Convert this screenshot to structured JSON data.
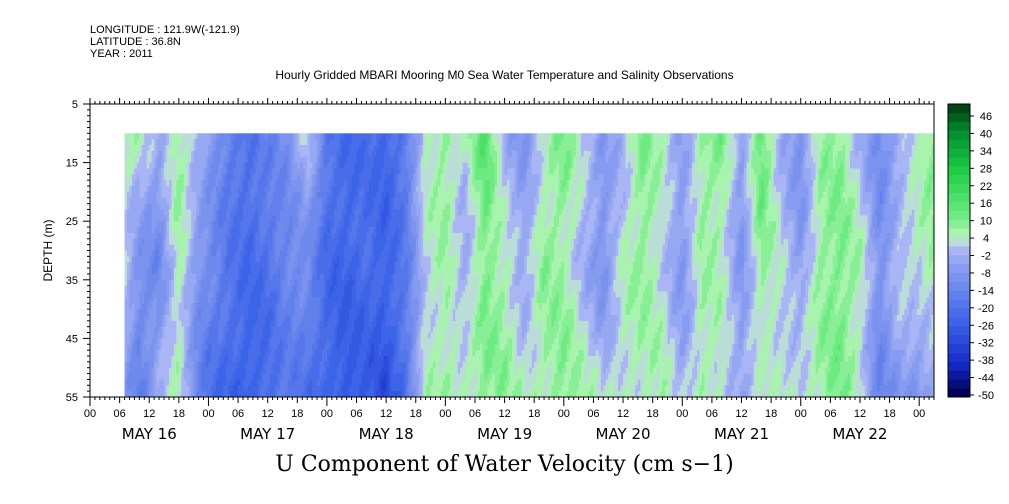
{
  "header": {
    "longitude": "LONGITUDE : 121.9W(-121.9)",
    "latitude": "LATITUDE : 36.8N",
    "year": "YEAR : 2011"
  },
  "chart_data": {
    "type": "heatmap",
    "title": "Hourly Gridded MBARI Mooring M0 Sea Water Temperature and Salinity Observations",
    "variable_label": "U Component of Water Velocity (cm s−1)",
    "ylabel": "DEPTH (m)",
    "y_axis": {
      "range": [
        5,
        55
      ],
      "inverted": true,
      "ticks": [
        5,
        15,
        25,
        35,
        45,
        55
      ],
      "tick_labels": [
        "5",
        "15",
        "25",
        "35",
        "45",
        "55"
      ]
    },
    "x_axis": {
      "range_hours": [
        0,
        171
      ],
      "hour_ticks": [
        "00",
        "06",
        "12",
        "18",
        "00",
        "06",
        "12",
        "18",
        "00",
        "06",
        "12",
        "18",
        "00",
        "06",
        "12",
        "18",
        "00",
        "06",
        "12",
        "18",
        "00",
        "06",
        "12",
        "18",
        "00",
        "06",
        "12",
        "18",
        "00"
      ],
      "day_labels": [
        "MAY 16",
        "MAY 17",
        "MAY 18",
        "MAY 19",
        "MAY 20",
        "MAY 21",
        "MAY 22"
      ]
    },
    "data_extent": {
      "start_hour": 7,
      "end_hour": 171,
      "top_depth": 10,
      "bottom_depth": 55
    },
    "colorbar": {
      "labels": [
        "46",
        "40",
        "34",
        "28",
        "22",
        "16",
        "10",
        "4",
        "-2",
        "-8",
        "-14",
        "-20",
        "-26",
        "-32",
        "-38",
        "-44",
        "-50"
      ],
      "min": -50,
      "max": 49,
      "step": 3
    },
    "colors": {
      "strong_positive": "#00a032",
      "positive": "#22dd55",
      "weak_positive": "#9cf0a0",
      "weak_negative": "#a8b8f4",
      "negative": "#6088ec",
      "strong_negative": "#2250d8",
      "deepest_negative": "#1a1f9a"
    },
    "column_profiles": {
      "description_hours": [
        7,
        10,
        14,
        18,
        22,
        24,
        28,
        32,
        36,
        40,
        44,
        48,
        52,
        56,
        60,
        64,
        68,
        72,
        76,
        80,
        84,
        88,
        92,
        96,
        100,
        104,
        108,
        112,
        116,
        120,
        124,
        128,
        132,
        136,
        140,
        144,
        148,
        152,
        156,
        160,
        164,
        168,
        171
      ],
      "top_values": [
        6,
        4,
        -4,
        8,
        0,
        -6,
        -16,
        -20,
        -14,
        -10,
        2,
        -18,
        -22,
        -20,
        -24,
        -18,
        4,
        8,
        2,
        16,
        -4,
        -8,
        4,
        10,
        2,
        -6,
        -2,
        10,
        4,
        -6,
        8,
        10,
        -6,
        14,
        -2,
        -10,
        6,
        8,
        -2,
        -12,
        -4,
        4,
        10
      ],
      "mid_values": [
        0,
        -10,
        -12,
        6,
        -10,
        -12,
        -18,
        -22,
        -20,
        -14,
        -12,
        -22,
        -24,
        -22,
        -24,
        -16,
        2,
        6,
        -4,
        10,
        6,
        -4,
        8,
        6,
        -2,
        -10,
        4,
        8,
        2,
        -8,
        6,
        4,
        -8,
        8,
        2,
        -6,
        8,
        10,
        6,
        -10,
        2,
        4,
        6
      ],
      "bottom_values": [
        -6,
        -16,
        -2,
        4,
        -14,
        -20,
        -24,
        -26,
        -22,
        -16,
        -20,
        -24,
        -28,
        -26,
        -30,
        -20,
        4,
        6,
        6,
        8,
        8,
        4,
        6,
        10,
        6,
        2,
        4,
        4,
        6,
        -2,
        6,
        4,
        -4,
        2,
        4,
        4,
        6,
        10,
        2,
        -14,
        -8,
        -10,
        -4
      ]
    }
  }
}
